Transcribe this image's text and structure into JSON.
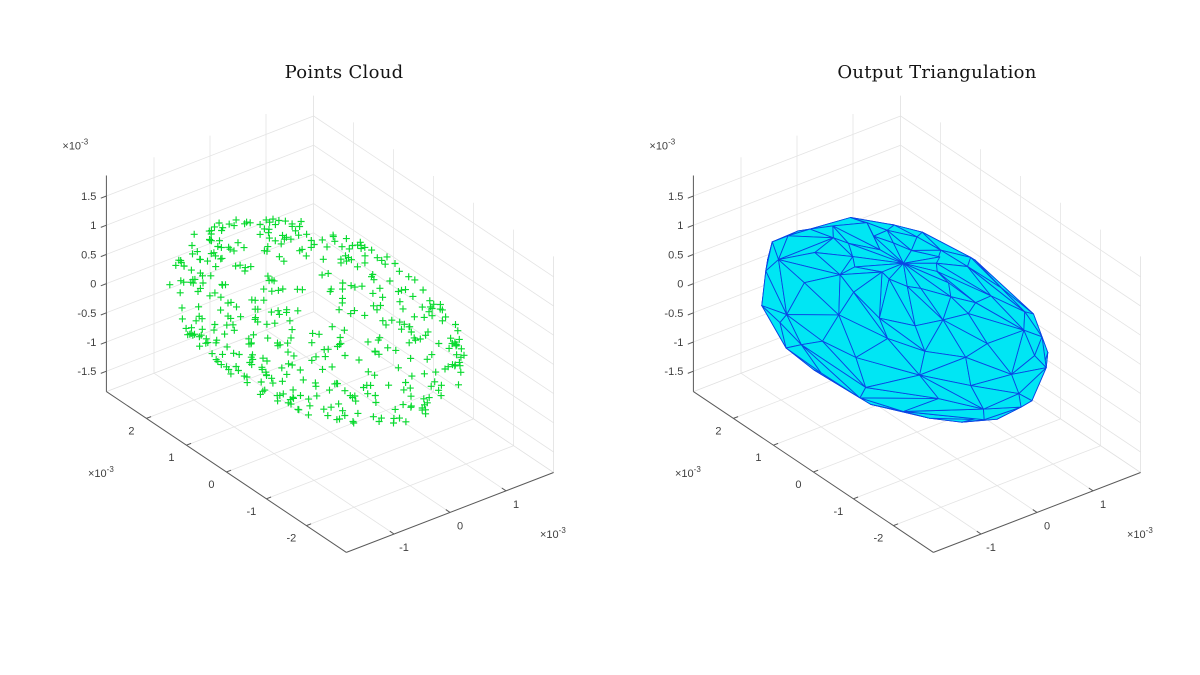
{
  "figure": {
    "background": "#ffffff",
    "kind": "matlab-3d-figure"
  },
  "style": {
    "grid_color": "#e4e4e4",
    "box_edge_color": "#e0e0e0",
    "axis_color": "#5a5a5a",
    "tick_label_color": "#3f3f3f",
    "title_color": "#141414"
  },
  "chart_data": [
    {
      "plot_id": "points-cloud",
      "type": "scatter",
      "projection": "3d-orthographic",
      "title": "Points Cloud",
      "view": {
        "azimuth": -37.5,
        "elevation": 30
      },
      "grid": true,
      "data_units": "1e-3",
      "axes": {
        "x": {
          "ticks": [
            -1,
            0,
            1
          ],
          "lim": [
            -1.85,
            1.85
          ],
          "scale_base": "×10",
          "scale_exp": "-3"
        },
        "y": {
          "ticks": [
            -2,
            -1,
            0,
            1,
            2
          ],
          "lim": [
            -3,
            3
          ],
          "scale_base": "×10",
          "scale_exp": "-3"
        },
        "z": {
          "ticks": [
            -1.5,
            -1,
            -0.5,
            0,
            0.5,
            1,
            1.5
          ],
          "lim": [
            -1.85,
            1.85
          ],
          "scale_base": "×10",
          "scale_exp": "-3"
        }
      },
      "surface": {
        "kind": "ellipsoid",
        "center": [
          -0.1,
          0.2,
          0.0
        ],
        "semi_axes": [
          1.65,
          2.95,
          1.0
        ]
      },
      "points": {
        "count": 450,
        "seed": 20,
        "surface_band": 0.06,
        "inner_fraction": 0.1
      },
      "marker": {
        "glyph": "+",
        "size": 7,
        "color": "#09da2f"
      }
    },
    {
      "plot_id": "output-triangulation",
      "type": "mesh",
      "projection": "3d-orthographic",
      "title": "Output Triangulation",
      "view": {
        "azimuth": -37.5,
        "elevation": 30
      },
      "grid": true,
      "data_units": "1e-3",
      "axes": {
        "x": {
          "ticks": [
            -1,
            0,
            1
          ],
          "lim": [
            -1.85,
            1.85
          ],
          "scale_base": "×10",
          "scale_exp": "-3"
        },
        "y": {
          "ticks": [
            -2,
            -1,
            0,
            1,
            2
          ],
          "lim": [
            -3,
            3
          ],
          "scale_base": "×10",
          "scale_exp": "-3"
        },
        "z": {
          "ticks": [
            -1.5,
            -1,
            -0.5,
            0,
            0.5,
            1,
            1.5
          ],
          "lim": [
            -1.85,
            1.85
          ],
          "scale_base": "×10",
          "scale_exp": "-3"
        }
      },
      "surface": {
        "kind": "ellipsoid",
        "center": [
          -0.1,
          0.2,
          0.0
        ],
        "semi_axes": [
          1.62,
          2.9,
          0.98
        ]
      },
      "mesh": {
        "lat_bands": 10,
        "lon_bands": 16,
        "seed": 5,
        "jitter": 0.35,
        "face_color": "#00e6f4",
        "edge_color": "#0a46e4",
        "edge_width": 0.9
      }
    }
  ]
}
